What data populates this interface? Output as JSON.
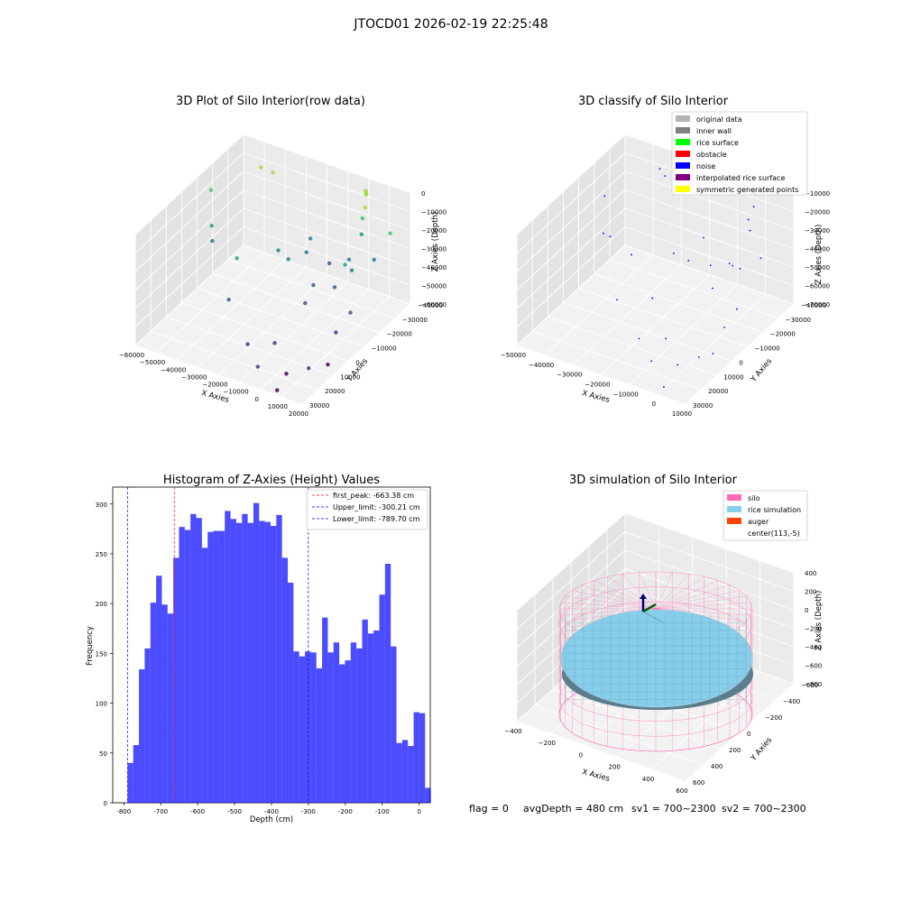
{
  "suptitle": "JTOCD01 2026-02-19 22:25:48",
  "chart_data": [
    {
      "type": "scatter",
      "title": "3D Plot of Silo Interior(row data)",
      "xlabel": "X Axies",
      "ylabel": "Y Axies",
      "zlabel": "Z Axies (Depth)",
      "x_ticks": [
        "−60000",
        "−50000",
        "−40000",
        "−30000",
        "−20000",
        "−10000",
        "0",
        "10000",
        "20000"
      ],
      "y_ticks": [
        "−40000",
        "−30000",
        "−20000",
        "−10000",
        "0",
        "10000",
        "20000",
        "30000"
      ],
      "z_ticks": [
        "0",
        "−10000",
        "−20000",
        "−30000",
        "−40000",
        "−50000",
        "−60000"
      ],
      "colormap": "viridis (color by depth)",
      "points": [
        {
          "x": -60000,
          "y": 9000,
          "z": -15000
        },
        {
          "x": -56000,
          "y": 4000,
          "z": -30000
        },
        {
          "x": -52000,
          "y": -1000,
          "z": -33000
        },
        {
          "x": -48000,
          "y": 25000,
          "z": -10000
        },
        {
          "x": -40000,
          "y": 22000,
          "z": -7000
        },
        {
          "x": -35000,
          "y": -8000,
          "z": -30000
        },
        {
          "x": -30000,
          "y": 12000,
          "z": -40000
        },
        {
          "x": -22000,
          "y": 22000,
          "z": -38000
        },
        {
          "x": -20000,
          "y": 5000,
          "z": -35000
        },
        {
          "x": -15000,
          "y": 10000,
          "z": -33000
        },
        {
          "x": -10000,
          "y": 18000,
          "z": -44000
        },
        {
          "x": -8000,
          "y": 5000,
          "z": -45000
        },
        {
          "x": -6000,
          "y": -3000,
          "z": -48000
        },
        {
          "x": -3000,
          "y": 12000,
          "z": -50000
        },
        {
          "x": -2000,
          "y": 20000,
          "z": -40000
        },
        {
          "x": 0,
          "y": 26000,
          "z": -20000
        },
        {
          "x": 0,
          "y": 28000,
          "z": -6000
        },
        {
          "x": 500,
          "y": 27500,
          "z": -5000
        },
        {
          "x": 1000,
          "y": 27000,
          "z": -6500
        },
        {
          "x": 1500,
          "y": 26500,
          "z": -5500
        },
        {
          "x": 2000,
          "y": 25000,
          "z": -12000
        },
        {
          "x": 2500,
          "y": 22000,
          "z": -25000
        },
        {
          "x": 3000,
          "y": 15000,
          "z": -40000
        },
        {
          "x": 5000,
          "y": 8000,
          "z": -30000
        },
        {
          "x": 8000,
          "y": -2000,
          "z": -60000
        },
        {
          "x": 10000,
          "y": 20000,
          "z": -35000
        },
        {
          "x": 12000,
          "y": 2000,
          "z": -50000
        },
        {
          "x": 14000,
          "y": 25000,
          "z": -22000
        },
        {
          "x": -30000,
          "y": -20000,
          "z": -42000
        },
        {
          "x": -15000,
          "y": -28000,
          "z": -55000
        },
        {
          "x": -5000,
          "y": -35000,
          "z": -58000
        },
        {
          "x": 5000,
          "y": -30000,
          "z": -62000
        },
        {
          "x": 12000,
          "y": -25000,
          "z": -60000
        },
        {
          "x": 16000,
          "y": -18000,
          "z": -62000
        },
        {
          "x": 8000,
          "y": -40000,
          "z": -62000
        },
        {
          "x": -8000,
          "y": -20000,
          "z": -58000
        }
      ]
    },
    {
      "type": "scatter",
      "title": "3D classify of Silo Interior",
      "xlabel": "X Axies",
      "ylabel": "Y Axies",
      "zlabel": "Z Axies (Depth)",
      "x_ticks": [
        "−50000",
        "−40000",
        "−30000",
        "−20000",
        "−10000",
        "0",
        "10000"
      ],
      "y_ticks": [
        "−40000",
        "−30000",
        "−20000",
        "−10000",
        "0",
        "10000",
        "20000",
        "30000"
      ],
      "z_ticks": [
        "−10000",
        "−20000",
        "−30000",
        "−40000",
        "−50000",
        "−60000",
        "−70000"
      ],
      "legend_position": "upper right",
      "legend": [
        {
          "label": "original data",
          "color": "#b3b3b3"
        },
        {
          "label": "inner wall",
          "color": "#808080"
        },
        {
          "label": "rice surface",
          "color": "#00ff00"
        },
        {
          "label": "obstacle",
          "color": "#ff0000"
        },
        {
          "label": "noise",
          "color": "#0000ff"
        },
        {
          "label": "interpolated rice surface",
          "color": "#800080"
        },
        {
          "label": "symmetric generated points",
          "color": "#ffff00"
        }
      ],
      "noise_points": [
        {
          "x": -50000,
          "y": 9000,
          "z": -20000
        },
        {
          "x": -46000,
          "y": 2000,
          "z": -35000
        },
        {
          "x": -42000,
          "y": 0,
          "z": -33000
        },
        {
          "x": -38000,
          "y": 26000,
          "z": -12000
        },
        {
          "x": -32000,
          "y": 20000,
          "z": -8000
        },
        {
          "x": -28000,
          "y": -8000,
          "z": -30000
        },
        {
          "x": -22000,
          "y": 10000,
          "z": -42000
        },
        {
          "x": -16000,
          "y": 20000,
          "z": -38000
        },
        {
          "x": -12000,
          "y": 4000,
          "z": -36000
        },
        {
          "x": -8000,
          "y": 12000,
          "z": -44000
        },
        {
          "x": -4000,
          "y": 18000,
          "z": -46000
        },
        {
          "x": -2000,
          "y": 4000,
          "z": -48000
        },
        {
          "x": 0,
          "y": 24000,
          "z": -22000
        },
        {
          "x": 0,
          "y": 27000,
          "z": -8000
        },
        {
          "x": 400,
          "y": 27300,
          "z": -7000
        },
        {
          "x": 800,
          "y": 27000,
          "z": -8500
        },
        {
          "x": 1200,
          "y": 26600,
          "z": -7500
        },
        {
          "x": 1600,
          "y": 25000,
          "z": -14000
        },
        {
          "x": 2000,
          "y": 22000,
          "z": -26000
        },
        {
          "x": 3000,
          "y": 14000,
          "z": -42000
        },
        {
          "x": 5000,
          "y": 6000,
          "z": -32000
        },
        {
          "x": 8000,
          "y": -4000,
          "z": -60000
        },
        {
          "x": 9000,
          "y": 18000,
          "z": -36000
        },
        {
          "x": 10000,
          "y": 1000,
          "z": -52000
        },
        {
          "x": -25000,
          "y": -22000,
          "z": -44000
        },
        {
          "x": -12000,
          "y": -28000,
          "z": -56000
        },
        {
          "x": -3000,
          "y": -34000,
          "z": -60000
        },
        {
          "x": 4000,
          "y": -28000,
          "z": -64000
        },
        {
          "x": 9000,
          "y": -22000,
          "z": -62000
        },
        {
          "x": 11000,
          "y": -16000,
          "z": -64000
        },
        {
          "x": 6000,
          "y": -40000,
          "z": -66000
        },
        {
          "x": -6000,
          "y": -20000,
          "z": -60000
        },
        {
          "x": -18000,
          "y": -10000,
          "z": -50000
        }
      ]
    },
    {
      "type": "bar",
      "title": "Histogram of Z-Axies (Height) Values",
      "xlabel": "Depth (cm)",
      "ylabel": "Frequency",
      "xlim": [
        -830,
        30
      ],
      "ylim": [
        0,
        317
      ],
      "x_ticks": [
        -800,
        -700,
        -600,
        -500,
        -400,
        -300,
        -200,
        -100,
        0
      ],
      "y_ticks": [
        0,
        50,
        100,
        150,
        200,
        250,
        300
      ],
      "bar_color": "#0000ff",
      "bar_alpha": 0.7,
      "bin_start": -790,
      "bin_width": 15.5,
      "values": [
        40,
        58,
        134,
        155,
        201,
        228,
        199,
        190,
        246,
        277,
        274,
        290,
        286,
        256,
        272,
        273,
        273,
        293,
        285,
        281,
        290,
        281,
        301,
        283,
        282,
        278,
        289,
        246,
        221,
        152,
        147,
        152,
        151,
        135,
        186,
        151,
        161,
        139,
        143,
        161,
        155,
        184,
        170,
        173,
        209,
        240,
        157,
        60,
        63,
        57,
        91,
        90,
        15
      ],
      "vlines": [
        {
          "label": "first_peak: -663.38 cm",
          "x": -663.38,
          "color": "#ff0000"
        },
        {
          "label": "Upper_limit: -300.21 cm",
          "x": -300.21,
          "color": "#0000ff"
        },
        {
          "label": "Lower_limit: -789.70 cm",
          "x": -789.7,
          "color": "#0000ff"
        }
      ],
      "legend_position": "upper right"
    },
    {
      "type": "surface",
      "title": "3D simulation of Silo Interior",
      "xlabel": "X Axies",
      "ylabel": "Y Axies",
      "zlabel": "Z Axies (Depth)",
      "x_ticks": [
        "−400",
        "−200",
        "0",
        "200",
        "400",
        "600"
      ],
      "y_ticks": [
        "−600",
        "−400",
        "−200",
        "0",
        "200",
        "400",
        "600"
      ],
      "z_ticks": [
        "400",
        "200",
        "0",
        "−200",
        "−400",
        "−600",
        "−800"
      ],
      "legend_position": "upper right",
      "legend": [
        {
          "label": "silo",
          "color": "#ff69b4"
        },
        {
          "label": "rice simulation",
          "color": "#87ceeb"
        },
        {
          "label": "auger",
          "color": "#ff4500"
        },
        {
          "label": "center(113,-5)",
          "color": ""
        }
      ],
      "silo": {
        "center_x": 113,
        "center_y": -5,
        "radius": 620,
        "z_top": 0,
        "z_bottom": -900
      },
      "rice_depth_cm": -480
    }
  ],
  "footer": {
    "flag": "flag = 0",
    "avg_depth": "avgDepth = 480 cm",
    "sv1": "sv1 = 700~2300",
    "sv2": "sv2 = 700~2300"
  }
}
